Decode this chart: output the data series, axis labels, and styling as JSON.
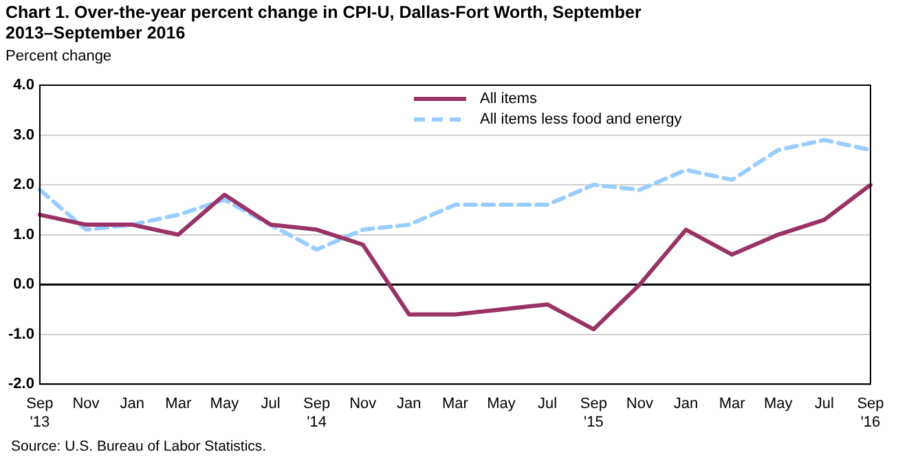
{
  "chart_data": {
    "type": "line",
    "title": "Chart 1. Over-the-year percent change in CPI-U, Dallas-Fort Worth, September 2013–September 2016",
    "ylabel": "Percent change",
    "categories": [
      "Sep '13",
      "Nov",
      "Jan",
      "Mar",
      "May",
      "Jul",
      "Sep '14",
      "Nov",
      "Jan",
      "Mar",
      "May",
      "Jul",
      "Sep '15",
      "Nov",
      "Jan",
      "Mar",
      "May",
      "Jul",
      "Sep '16"
    ],
    "series": [
      {
        "name": "All items",
        "color": "#993366",
        "line_style": "solid",
        "values": [
          1.4,
          1.2,
          1.2,
          1.0,
          1.8,
          1.2,
          1.1,
          0.8,
          -0.6,
          -0.6,
          -0.5,
          -0.4,
          -0.9,
          0.0,
          1.1,
          0.6,
          1.0,
          1.3,
          2.0
        ]
      },
      {
        "name": "All items less food and energy",
        "color": "#99ccff",
        "line_style": "dashed",
        "values": [
          1.9,
          1.1,
          1.2,
          1.4,
          1.7,
          1.2,
          0.7,
          1.1,
          1.2,
          1.6,
          1.6,
          1.6,
          2.0,
          1.9,
          2.3,
          2.1,
          2.7,
          2.9,
          2.7
        ]
      }
    ],
    "ylim": [
      -2,
      4
    ],
    "yticks": [
      {
        "value": -2,
        "label": "-2.0"
      },
      {
        "value": -1,
        "label": "-1.0"
      },
      {
        "value": 0,
        "label": "0.0"
      },
      {
        "value": 1,
        "label": "1.0"
      },
      {
        "value": 2,
        "label": "2.0"
      },
      {
        "value": 3,
        "label": "3.0"
      },
      {
        "value": 4,
        "label": "4.0"
      }
    ],
    "grid": "y",
    "legend": "top",
    "marker": "none",
    "ref_lines": [
      {
        "axis": "y",
        "value": 0,
        "color": "#000000"
      }
    ],
    "annotations": [
      "Source: U.S. Bureau of Labor Statistics."
    ]
  }
}
